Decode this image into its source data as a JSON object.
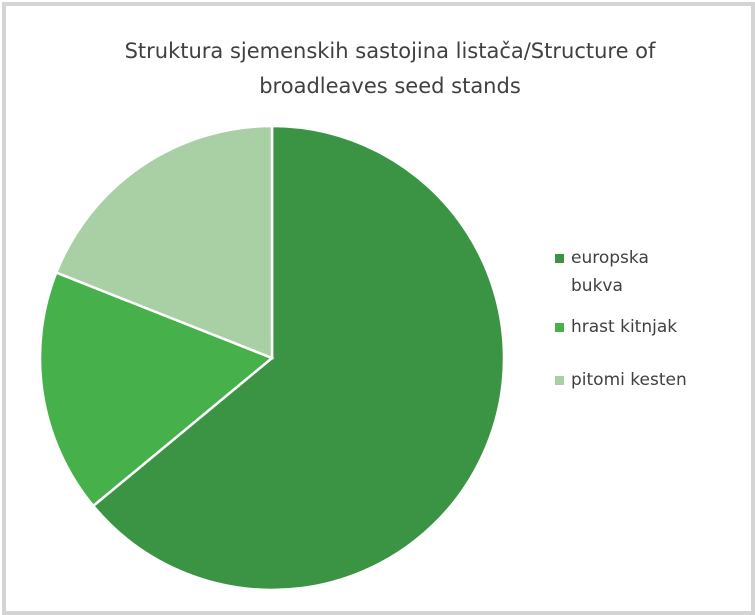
{
  "chart_data": {
    "type": "pie",
    "title": "Struktura sjemenskih sastojina listača/Structure of broadleaves seed stands",
    "categories": [
      "europska bukva",
      "hrast kitnjak",
      "pitomi kesten"
    ],
    "values": [
      64,
      17,
      19
    ],
    "colors": [
      "#3a9444",
      "#46b04b",
      "#a9cfa5"
    ],
    "legend": "right"
  }
}
